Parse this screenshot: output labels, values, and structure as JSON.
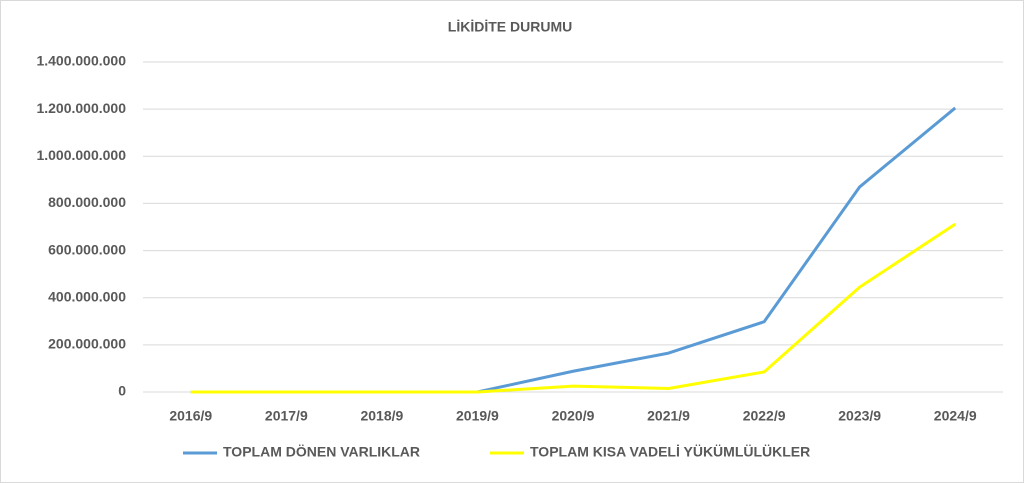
{
  "chart_data": {
    "type": "line",
    "title": "LİKİDİTE DURUMU",
    "categories": [
      "2016/9",
      "2017/9",
      "2018/9",
      "2019/9",
      "2020/9",
      "2021/9",
      "2022/9",
      "2023/9",
      "2024/9"
    ],
    "series": [
      {
        "name": "TOPLAM DÖNEN VARLIKLAR",
        "color": "#5b9bd5",
        "values": [
          0,
          0,
          0,
          0,
          88000000,
          165000000,
          298000000,
          870000000,
          1205000000
        ]
      },
      {
        "name": "TOPLAM KISA VADELİ YÜKÜMLÜLÜKLER",
        "color": "#ffff00",
        "values": [
          0,
          0,
          0,
          0,
          25000000,
          15000000,
          85000000,
          445000000,
          712000000
        ]
      }
    ],
    "ylim": [
      0,
      1400000000
    ],
    "yticks": [
      0,
      {
        "value": 200000000,
        "label": "200.000.000"
      },
      {
        "value": 400000000,
        "label": "400.000.000"
      },
      {
        "value": 600000000,
        "label": "600.000.000"
      },
      {
        "value": 800000000,
        "label": "800.000.000"
      },
      {
        "value": 1000000000,
        "label": "1.000.000.000"
      },
      {
        "value": 1200000000,
        "label": "1.200.000.000"
      },
      {
        "value": 1400000000,
        "label": "1.400.000.000"
      }
    ],
    "grid": true,
    "legend": "bottom"
  }
}
